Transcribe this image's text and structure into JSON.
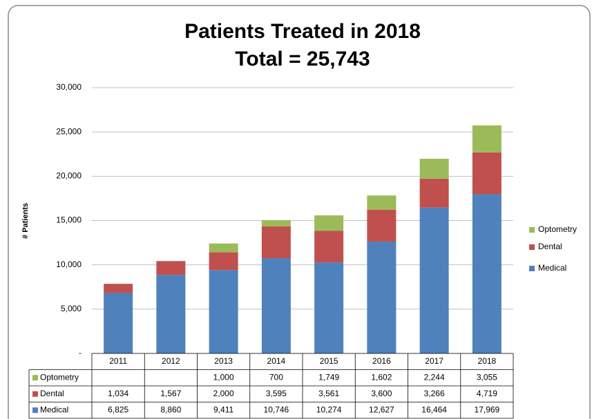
{
  "chart_data": {
    "type": "stacked_bar",
    "title": "Patients Treated in 2018",
    "subtitle": "Total = 25,743",
    "y_label": "# Patients",
    "categories": [
      "2011",
      "2012",
      "2013",
      "2014",
      "2015",
      "2016",
      "2017",
      "2018"
    ],
    "series": [
      {
        "name": "Medical",
        "color": "#4f81bd",
        "values": [
          6825,
          8860,
          9411,
          10746,
          10274,
          12627,
          16464,
          17969
        ],
        "value_labels": [
          "6,825",
          "8,860",
          "9,411",
          "10,746",
          "10,274",
          "12,627",
          "16,464",
          "17,969"
        ]
      },
      {
        "name": "Dental",
        "color": "#c0504d",
        "values": [
          1034,
          1567,
          2000,
          3595,
          3561,
          3600,
          3266,
          4719
        ],
        "value_labels": [
          "1,034",
          "1,567",
          "2,000",
          "3,595",
          "3,561",
          "3,600",
          "3,266",
          "4,719"
        ]
      },
      {
        "name": "Optometry",
        "color": "#9bbb59",
        "values": [
          null,
          null,
          1000,
          700,
          1749,
          1602,
          2244,
          3055
        ],
        "value_labels": [
          null,
          null,
          "1,000",
          "700",
          "1,749",
          "1,602",
          "2,244",
          "3,055"
        ]
      }
    ],
    "ylim": [
      0,
      30000
    ],
    "yticks": [
      {
        "value": 0,
        "label": "-"
      },
      {
        "value": 5000,
        "label": "5,000"
      },
      {
        "value": 10000,
        "label": "10,000"
      },
      {
        "value": 15000,
        "label": "15,000"
      },
      {
        "value": 20000,
        "label": "20,000"
      },
      {
        "value": 25000,
        "label": "25,000"
      },
      {
        "value": 30000,
        "label": "30,000"
      }
    ],
    "grid": true,
    "legend": "right"
  }
}
